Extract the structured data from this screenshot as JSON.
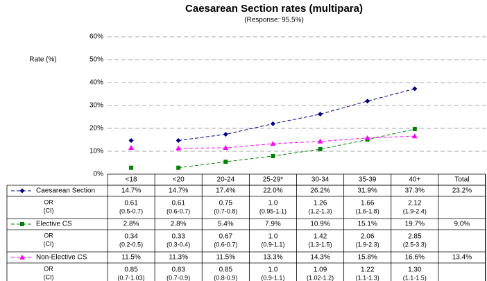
{
  "chart_data": {
    "type": "line",
    "title": "Caesarean Section rates (multipara)",
    "subtitle": "(Response: 95.5%)",
    "y_label": "Rate (%)",
    "categories": [
      "<18",
      "<20",
      "20-24",
      "25-29*",
      "30-34",
      "35-39",
      "40+",
      "Total"
    ],
    "ylim": [
      0,
      60
    ],
    "yticks": [
      {
        "value": 0,
        "label": "0%"
      },
      {
        "value": 10,
        "label": "10%"
      },
      {
        "value": 20,
        "label": "20%"
      },
      {
        "value": 30,
        "label": "30%"
      },
      {
        "value": 40,
        "label": "40%"
      },
      {
        "value": 50,
        "label": "50%"
      },
      {
        "value": 60,
        "label": "60%"
      }
    ],
    "grid": true,
    "or_label": "OR",
    "ci_label": "(CI)",
    "series": [
      {
        "name": "Caesarean Section",
        "color": "#000080",
        "marker": "diamond",
        "values": [
          14.7,
          14.7,
          17.4,
          22.0,
          26.2,
          31.9,
          37.3,
          23.2
        ],
        "value_labels": [
          "14.7%",
          "14.7%",
          "17.4%",
          "22.0%",
          "26.2%",
          "31.9%",
          "37.3%",
          "23.2%"
        ],
        "or": [
          "0.61",
          "0.61",
          "0.75",
          "1.0",
          "1.26",
          "1.66",
          "2.12"
        ],
        "ci": [
          "(0.5-0.7)",
          "(0.6-0.7)",
          "(0.7-0.8)",
          "(0.95-1.1)",
          "(1.2-1.3)",
          "(1.6-1.8)",
          "(1.9-2.4)"
        ]
      },
      {
        "name": "Elective CS",
        "color": "#008000",
        "marker": "square",
        "values": [
          2.8,
          2.8,
          5.4,
          7.9,
          10.9,
          15.1,
          19.7,
          9.0
        ],
        "value_labels": [
          "2.8%",
          "2.8%",
          "5.4%",
          "7.9%",
          "10.9%",
          "15.1%",
          "19.7%",
          "9.0%"
        ],
        "or": [
          "0.34",
          "0.33",
          "0.67",
          "1.0",
          "1.42",
          "2.06",
          "2.85"
        ],
        "ci": [
          "(0.2-0.5)",
          "(0.3-0.4)",
          "(0.6-0.7)",
          "(0.9-1.1)",
          "(1.3-1.5)",
          "(1.9-2.3)",
          "(2.5-3.3)"
        ]
      },
      {
        "name": "Non-Elective CS",
        "color": "#ff00ff",
        "marker": "triangle",
        "values": [
          11.5,
          11.3,
          11.5,
          13.3,
          14.3,
          15.8,
          16.6,
          13.4
        ],
        "value_labels": [
          "11.5%",
          "11.3%",
          "11.5%",
          "13.3%",
          "14.3%",
          "15.8%",
          "16.6%",
          "13.4%"
        ],
        "or": [
          "0.85",
          "0.83",
          "0.85",
          "1.0",
          "1.09",
          "1.22",
          "1.30"
        ],
        "ci": [
          "(0.7-1.03)",
          "(0.7-0.9)",
          "(0.8-0.9)",
          "(0.9-1.1)",
          "(1.02-1.2)",
          "(1.1-1.3)",
          "(1.1-1.5)"
        ]
      }
    ]
  }
}
